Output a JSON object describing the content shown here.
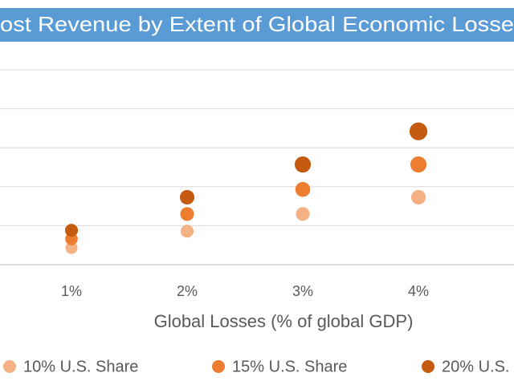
{
  "chart_data": {
    "type": "scatter",
    "title": "ost Revenue by Extent of Global Economic Losse",
    "x_label": "Global Losses (% of global GDP)",
    "categories": [
      "1%",
      "2%",
      "3%",
      "4%"
    ],
    "series": [
      {
        "name": "10% U.S. Share",
        "color": "#f4b183",
        "values": [
          0.43,
          0.86,
          1.3,
          1.73
        ]
      },
      {
        "name": "15% U.S. Share",
        "color": "#ed7d31",
        "values": [
          0.66,
          1.3,
          1.93,
          2.57
        ]
      },
      {
        "name": "20% U.S.",
        "color": "#c55a11",
        "values": [
          0.88,
          1.73,
          2.57,
          3.42
        ]
      }
    ],
    "ylim": [
      0,
      5
    ],
    "yticks": [
      0,
      1,
      2,
      3,
      4,
      5
    ],
    "show_ytick_labels": false,
    "grid": true,
    "title_background": "#5b9bd5",
    "legend": "bottom"
  }
}
